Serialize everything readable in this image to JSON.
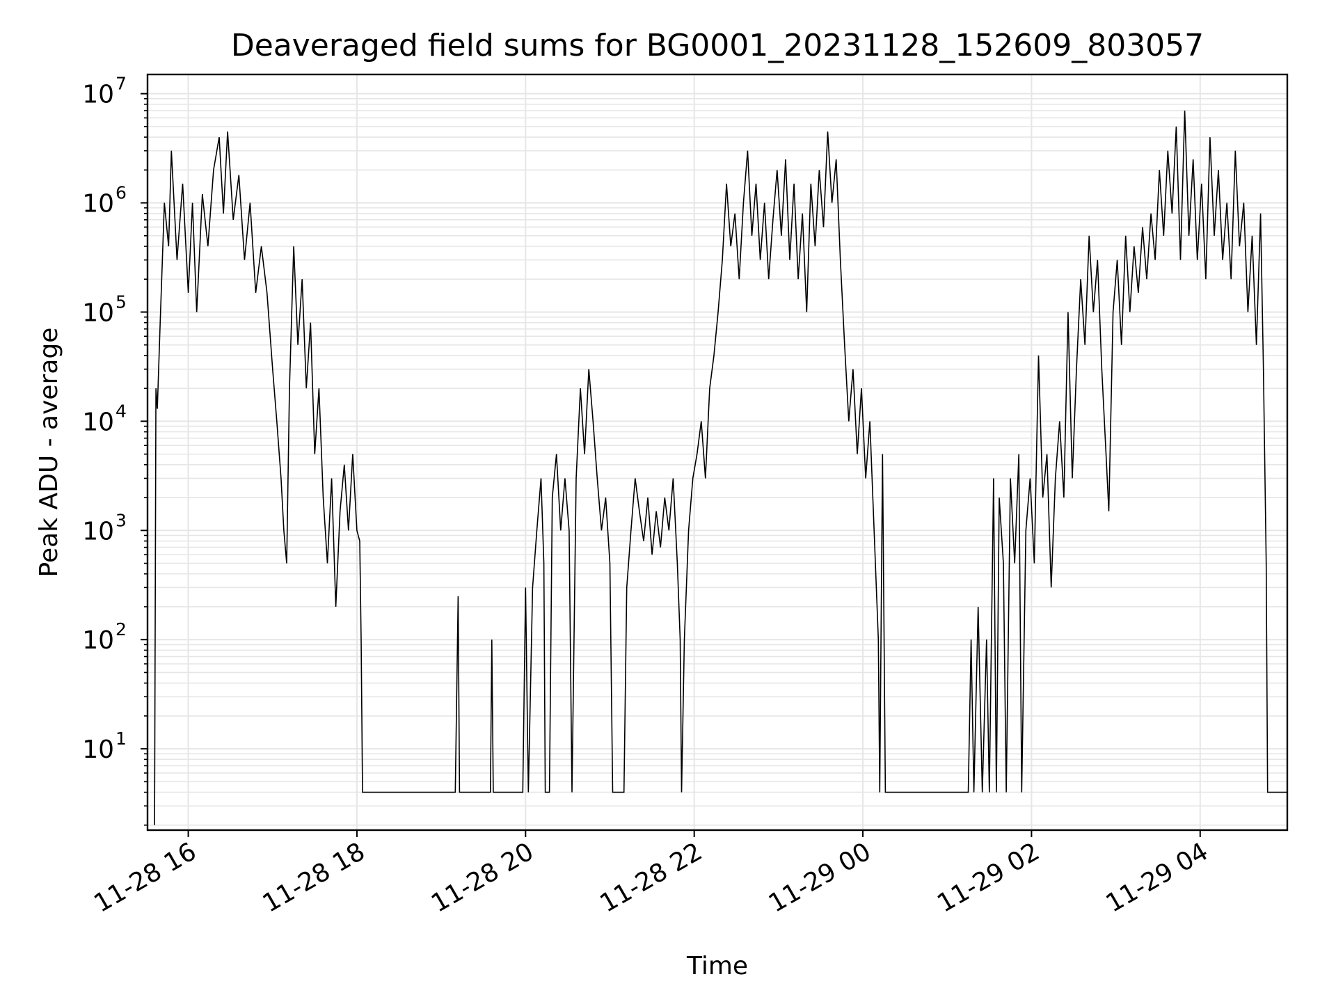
{
  "chart_data": {
    "type": "line",
    "title": "Deaveraged field sums for BG0001_20231128_152609_803057",
    "xlabel": "Time",
    "ylabel": "Peak ADU - average",
    "yscale": "log",
    "grid": true,
    "xlim": [
      "11-28 15:31",
      "11-29 05:02"
    ],
    "ylim": [
      1.8,
      15000000
    ],
    "x_ticks": [
      "11-28 16",
      "11-28 18",
      "11-28 20",
      "11-28 22",
      "11-29 00",
      "11-29 02",
      "11-29 04"
    ],
    "y_ticks": [
      {
        "base": "10",
        "exp": "1"
      },
      {
        "base": "10",
        "exp": "2"
      },
      {
        "base": "10",
        "exp": "3"
      },
      {
        "base": "10",
        "exp": "4"
      },
      {
        "base": "10",
        "exp": "5"
      },
      {
        "base": "10",
        "exp": "6"
      },
      {
        "base": "10",
        "exp": "7"
      }
    ],
    "line_color": "#000000",
    "grid_color": "#e6e6e6",
    "series": [
      {
        "points": [
          [
            "11-28 15:36",
            2
          ],
          [
            "11-28 15:37",
            20000
          ],
          [
            "11-28 15:38",
            13000
          ],
          [
            "11-28 15:40",
            80000
          ],
          [
            "11-28 15:43",
            1000000
          ],
          [
            "11-28 15:46",
            400000
          ],
          [
            "11-28 15:48",
            3000000
          ],
          [
            "11-28 15:52",
            300000
          ],
          [
            "11-28 15:56",
            1500000
          ],
          [
            "11-28 16:00",
            150000
          ],
          [
            "11-28 16:03",
            1000000
          ],
          [
            "11-28 16:06",
            100000
          ],
          [
            "11-28 16:10",
            1200000
          ],
          [
            "11-28 16:14",
            400000
          ],
          [
            "11-28 16:18",
            2000000
          ],
          [
            "11-28 16:22",
            4000000
          ],
          [
            "11-28 16:25",
            800000
          ],
          [
            "11-28 16:28",
            4500000
          ],
          [
            "11-28 16:32",
            700000
          ],
          [
            "11-28 16:36",
            1800000
          ],
          [
            "11-28 16:40",
            300000
          ],
          [
            "11-28 16:44",
            1000000
          ],
          [
            "11-28 16:48",
            150000
          ],
          [
            "11-28 16:52",
            400000
          ],
          [
            "11-28 16:56",
            150000
          ],
          [
            "11-28 17:00",
            30000
          ],
          [
            "11-28 17:03",
            10000
          ],
          [
            "11-28 17:06",
            3000
          ],
          [
            "11-28 17:08",
            1000
          ],
          [
            "11-28 17:10",
            500
          ],
          [
            "11-28 17:12",
            20000
          ],
          [
            "11-28 17:15",
            400000
          ],
          [
            "11-28 17:18",
            50000
          ],
          [
            "11-28 17:21",
            200000
          ],
          [
            "11-28 17:24",
            20000
          ],
          [
            "11-28 17:27",
            80000
          ],
          [
            "11-28 17:30",
            5000
          ],
          [
            "11-28 17:33",
            20000
          ],
          [
            "11-28 17:36",
            2000
          ],
          [
            "11-28 17:39",
            500
          ],
          [
            "11-28 17:42",
            3000
          ],
          [
            "11-28 17:45",
            200
          ],
          [
            "11-28 17:48",
            1500
          ],
          [
            "11-28 17:51",
            4000
          ],
          [
            "11-28 17:54",
            1000
          ],
          [
            "11-28 17:57",
            5000
          ],
          [
            "11-28 18:00",
            1000
          ],
          [
            "11-28 18:02",
            800
          ],
          [
            "11-28 18:03",
            100
          ],
          [
            "11-28 18:04",
            4
          ],
          [
            "11-28 19:10",
            4
          ],
          [
            "11-28 19:12",
            250
          ],
          [
            "11-28 19:13",
            4
          ],
          [
            "11-28 19:35",
            4
          ],
          [
            "11-28 19:36",
            100
          ],
          [
            "11-28 19:37",
            4
          ],
          [
            "11-28 19:58",
            4
          ],
          [
            "11-28 20:00",
            300
          ],
          [
            "11-28 20:02",
            4
          ],
          [
            "11-28 20:05",
            300
          ],
          [
            "11-28 20:08",
            1000
          ],
          [
            "11-28 20:11",
            3000
          ],
          [
            "11-28 20:13",
            500
          ],
          [
            "11-28 20:14",
            4
          ],
          [
            "11-28 20:17",
            4
          ],
          [
            "11-28 20:19",
            2000
          ],
          [
            "11-28 20:22",
            5000
          ],
          [
            "11-28 20:25",
            1000
          ],
          [
            "11-28 20:28",
            3000
          ],
          [
            "11-28 20:31",
            1000
          ],
          [
            "11-28 20:33",
            4
          ],
          [
            "11-28 20:36",
            3000
          ],
          [
            "11-28 20:39",
            20000
          ],
          [
            "11-28 20:42",
            5000
          ],
          [
            "11-28 20:45",
            30000
          ],
          [
            "11-28 20:48",
            10000
          ],
          [
            "11-28 20:51",
            3000
          ],
          [
            "11-28 20:54",
            1000
          ],
          [
            "11-28 20:57",
            2000
          ],
          [
            "11-28 21:00",
            500
          ],
          [
            "11-28 21:02",
            4
          ],
          [
            "11-28 21:10",
            4
          ],
          [
            "11-28 21:12",
            300
          ],
          [
            "11-28 21:15",
            1000
          ],
          [
            "11-28 21:18",
            3000
          ],
          [
            "11-28 21:21",
            1500
          ],
          [
            "11-28 21:24",
            800
          ],
          [
            "11-28 21:27",
            2000
          ],
          [
            "11-28 21:30",
            600
          ],
          [
            "11-28 21:33",
            1500
          ],
          [
            "11-28 21:36",
            700
          ],
          [
            "11-28 21:39",
            2000
          ],
          [
            "11-28 21:42",
            1000
          ],
          [
            "11-28 21:45",
            3000
          ],
          [
            "11-28 21:48",
            500
          ],
          [
            "11-28 21:50",
            100
          ],
          [
            "11-28 21:51",
            4
          ],
          [
            "11-28 21:53",
            100
          ],
          [
            "11-28 21:56",
            1000
          ],
          [
            "11-28 21:59",
            3000
          ],
          [
            "11-28 22:02",
            5000
          ],
          [
            "11-28 22:05",
            10000
          ],
          [
            "11-28 22:08",
            3000
          ],
          [
            "11-28 22:11",
            20000
          ],
          [
            "11-28 22:14",
            40000
          ],
          [
            "11-28 22:17",
            100000
          ],
          [
            "11-28 22:20",
            300000
          ],
          [
            "11-28 22:23",
            1500000
          ],
          [
            "11-28 22:26",
            400000
          ],
          [
            "11-28 22:29",
            800000
          ],
          [
            "11-28 22:32",
            200000
          ],
          [
            "11-28 22:35",
            1000000
          ],
          [
            "11-28 22:38",
            3000000
          ],
          [
            "11-28 22:41",
            500000
          ],
          [
            "11-28 22:44",
            1500000
          ],
          [
            "11-28 22:47",
            300000
          ],
          [
            "11-28 22:50",
            1000000
          ],
          [
            "11-28 22:53",
            200000
          ],
          [
            "11-28 22:56",
            700000
          ],
          [
            "11-28 22:59",
            2000000
          ],
          [
            "11-28 23:02",
            500000
          ],
          [
            "11-28 23:05",
            2500000
          ],
          [
            "11-28 23:08",
            300000
          ],
          [
            "11-28 23:11",
            1500000
          ],
          [
            "11-28 23:14",
            200000
          ],
          [
            "11-28 23:17",
            800000
          ],
          [
            "11-28 23:20",
            100000
          ],
          [
            "11-28 23:23",
            1500000
          ],
          [
            "11-28 23:26",
            400000
          ],
          [
            "11-28 23:29",
            2000000
          ],
          [
            "11-28 23:32",
            600000
          ],
          [
            "11-28 23:35",
            4500000
          ],
          [
            "11-28 23:38",
            1000000
          ],
          [
            "11-28 23:41",
            2500000
          ],
          [
            "11-28 23:44",
            300000
          ],
          [
            "11-28 23:47",
            50000
          ],
          [
            "11-28 23:50",
            10000
          ],
          [
            "11-28 23:53",
            30000
          ],
          [
            "11-28 23:56",
            5000
          ],
          [
            "11-28 23:59",
            20000
          ],
          [
            "11-29 00:02",
            3000
          ],
          [
            "11-29 00:05",
            10000
          ],
          [
            "11-29 00:08",
            1000
          ],
          [
            "11-29 00:11",
            100
          ],
          [
            "11-29 00:12",
            4
          ],
          [
            "11-29 00:14",
            5000
          ],
          [
            "11-29 00:16",
            4
          ],
          [
            "11-29 01:15",
            4
          ],
          [
            "11-29 01:17",
            100
          ],
          [
            "11-29 01:19",
            4
          ],
          [
            "11-29 01:22",
            200
          ],
          [
            "11-29 01:25",
            4
          ],
          [
            "11-29 01:28",
            100
          ],
          [
            "11-29 01:30",
            4
          ],
          [
            "11-29 01:33",
            3000
          ],
          [
            "11-29 01:35",
            4
          ],
          [
            "11-29 01:37",
            2000
          ],
          [
            "11-29 01:40",
            500
          ],
          [
            "11-29 01:42",
            4
          ],
          [
            "11-29 01:45",
            3000
          ],
          [
            "11-29 01:48",
            500
          ],
          [
            "11-29 01:51",
            5000
          ],
          [
            "11-29 01:53",
            4
          ],
          [
            "11-29 01:56",
            1000
          ],
          [
            "11-29 01:59",
            3000
          ],
          [
            "11-29 02:02",
            500
          ],
          [
            "11-29 02:05",
            40000
          ],
          [
            "11-29 02:08",
            2000
          ],
          [
            "11-29 02:11",
            5000
          ],
          [
            "11-29 02:14",
            300
          ],
          [
            "11-29 02:17",
            3000
          ],
          [
            "11-29 02:20",
            10000
          ],
          [
            "11-29 02:23",
            2000
          ],
          [
            "11-29 02:26",
            100000
          ],
          [
            "11-29 02:29",
            3000
          ],
          [
            "11-29 02:32",
            30000
          ],
          [
            "11-29 02:35",
            200000
          ],
          [
            "11-29 02:38",
            50000
          ],
          [
            "11-29 02:41",
            500000
          ],
          [
            "11-29 02:44",
            100000
          ],
          [
            "11-29 02:47",
            300000
          ],
          [
            "11-29 02:50",
            30000
          ],
          [
            "11-29 02:53",
            5000
          ],
          [
            "11-29 02:55",
            1500
          ],
          [
            "11-29 02:58",
            100000
          ],
          [
            "11-29 03:01",
            300000
          ],
          [
            "11-29 03:04",
            50000
          ],
          [
            "11-29 03:07",
            500000
          ],
          [
            "11-29 03:10",
            100000
          ],
          [
            "11-29 03:13",
            400000
          ],
          [
            "11-29 03:16",
            150000
          ],
          [
            "11-29 03:19",
            600000
          ],
          [
            "11-29 03:22",
            200000
          ],
          [
            "11-29 03:25",
            800000
          ],
          [
            "11-29 03:28",
            300000
          ],
          [
            "11-29 03:31",
            2000000
          ],
          [
            "11-29 03:34",
            500000
          ],
          [
            "11-29 03:37",
            3000000
          ],
          [
            "11-29 03:40",
            800000
          ],
          [
            "11-29 03:43",
            5000000
          ],
          [
            "11-29 03:46",
            300000
          ],
          [
            "11-29 03:49",
            7000000
          ],
          [
            "11-29 03:52",
            500000
          ],
          [
            "11-29 03:55",
            2500000
          ],
          [
            "11-29 03:58",
            300000
          ],
          [
            "11-29 04:01",
            1500000
          ],
          [
            "11-29 04:04",
            200000
          ],
          [
            "11-29 04:07",
            4000000
          ],
          [
            "11-29 04:10",
            500000
          ],
          [
            "11-29 04:13",
            2000000
          ],
          [
            "11-29 04:16",
            300000
          ],
          [
            "11-29 04:19",
            1000000
          ],
          [
            "11-29 04:22",
            200000
          ],
          [
            "11-29 04:25",
            3000000
          ],
          [
            "11-29 04:28",
            400000
          ],
          [
            "11-29 04:31",
            1000000
          ],
          [
            "11-29 04:34",
            100000
          ],
          [
            "11-29 04:37",
            500000
          ],
          [
            "11-29 04:40",
            50000
          ],
          [
            "11-29 04:43",
            800000
          ],
          [
            "11-29 04:45",
            30000
          ],
          [
            "11-29 04:47",
            500
          ],
          [
            "11-29 04:48",
            4
          ],
          [
            "11-29 05:02",
            4
          ]
        ]
      }
    ]
  }
}
